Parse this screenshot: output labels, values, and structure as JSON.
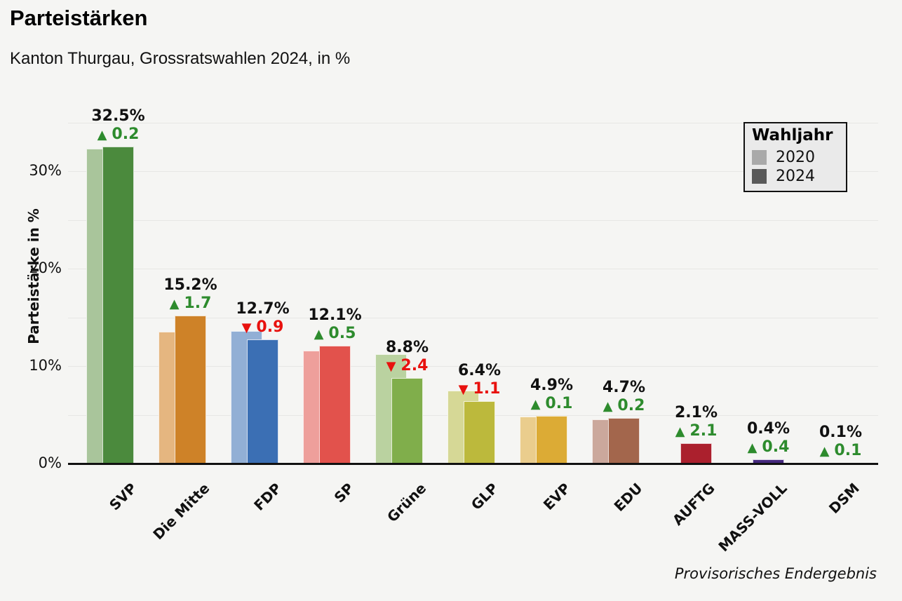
{
  "chart_data": {
    "type": "bar",
    "title": "Parteistärken",
    "subtitle": "Kanton Thurgau, Grossratswahlen 2024, in %",
    "ylabel": "Parteistärke in %",
    "ylim": [
      0,
      35
    ],
    "grid": "horizontal lines every 5%",
    "yticks": [
      {
        "value": 0,
        "label": "0%"
      },
      {
        "value": 10,
        "label": "10%"
      },
      {
        "value": 20,
        "label": "20%"
      },
      {
        "value": 30,
        "label": "30%"
      }
    ],
    "legend": {
      "title": "Wahljahr",
      "position": "top-right",
      "items": [
        {
          "label": "2020",
          "color": "#a9a9a9"
        },
        {
          "label": "2024",
          "color": "#595959"
        }
      ]
    },
    "note": "Provisorisches Endergebnis",
    "categories": [
      "SVP",
      "Die Mitte",
      "FDP",
      "SP",
      "Grüne",
      "GLP",
      "EVP",
      "EDU",
      "AUFTG",
      "MASS-VOLL",
      "DSM"
    ],
    "series": [
      {
        "name": "2020",
        "values": [
          32.3,
          13.5,
          13.6,
          11.6,
          11.2,
          7.5,
          4.8,
          4.5,
          0,
          0,
          0
        ]
      },
      {
        "name": "2024",
        "values": [
          32.5,
          15.2,
          12.7,
          12.1,
          8.8,
          6.4,
          4.9,
          4.7,
          2.1,
          0.4,
          0.1
        ]
      }
    ],
    "bars": [
      {
        "party": "SVP",
        "v2020": 32.3,
        "v2024": 32.5,
        "value_label": "32.5%",
        "change_label": "0.2",
        "direction": "up",
        "color2020": "#a9c59b",
        "color2024": "#4b8a3d"
      },
      {
        "party": "Die Mitte",
        "v2020": 13.5,
        "v2024": 15.2,
        "value_label": "15.2%",
        "change_label": "1.7",
        "direction": "up",
        "color2020": "#e5b680",
        "color2024": "#ce8228"
      },
      {
        "party": "FDP",
        "v2020": 13.6,
        "v2024": 12.7,
        "value_label": "12.7%",
        "change_label": "0.9",
        "direction": "down",
        "color2020": "#92afd5",
        "color2024": "#3b6fb4"
      },
      {
        "party": "SP",
        "v2020": 11.6,
        "v2024": 12.1,
        "value_label": "12.1%",
        "change_label": "0.5",
        "direction": "up",
        "color2020": "#ee9f9b",
        "color2024": "#e2524c"
      },
      {
        "party": "Grüne",
        "v2020": 11.2,
        "v2024": 8.8,
        "value_label": "8.8%",
        "change_label": "2.4",
        "direction": "down",
        "color2020": "#bad2a0",
        "color2024": "#80ae4b"
      },
      {
        "party": "GLP",
        "v2020": 7.5,
        "v2024": 6.4,
        "value_label": "6.4%",
        "change_label": "1.1",
        "direction": "down",
        "color2020": "#d6d896",
        "color2024": "#bcb93c"
      },
      {
        "party": "EVP",
        "v2020": 4.8,
        "v2024": 4.9,
        "value_label": "4.9%",
        "change_label": "0.1",
        "direction": "up",
        "color2020": "#eacd8d",
        "color2024": "#dcab35"
      },
      {
        "party": "EDU",
        "v2020": 4.5,
        "v2024": 4.7,
        "value_label": "4.7%",
        "change_label": "0.2",
        "direction": "up",
        "color2020": "#cba89c",
        "color2024": "#a3664c"
      },
      {
        "party": "AUFTG",
        "v2020": 0,
        "v2024": 2.1,
        "value_label": "2.1%",
        "change_label": "2.1",
        "direction": "up",
        "color2020": null,
        "color2024": "#ab202d"
      },
      {
        "party": "MASS-VOLL",
        "v2020": 0,
        "v2024": 0.4,
        "value_label": "0.4%",
        "change_label": "0.4",
        "direction": "up",
        "color2020": null,
        "color2024": "#45297e"
      },
      {
        "party": "DSM",
        "v2020": 0,
        "v2024": 0.1,
        "value_label": "0.1%",
        "change_label": "0.1",
        "direction": "up",
        "color2020": null,
        "color2024": "#777777"
      }
    ]
  },
  "icons": {
    "up_arrow": "▲",
    "down_arrow": "▼"
  },
  "colors": {
    "increase": "#2d8b2d",
    "decrease": "#e8110e",
    "axis": "#111111",
    "grid": "#e7e7e4",
    "background": "#f5f5f3"
  }
}
